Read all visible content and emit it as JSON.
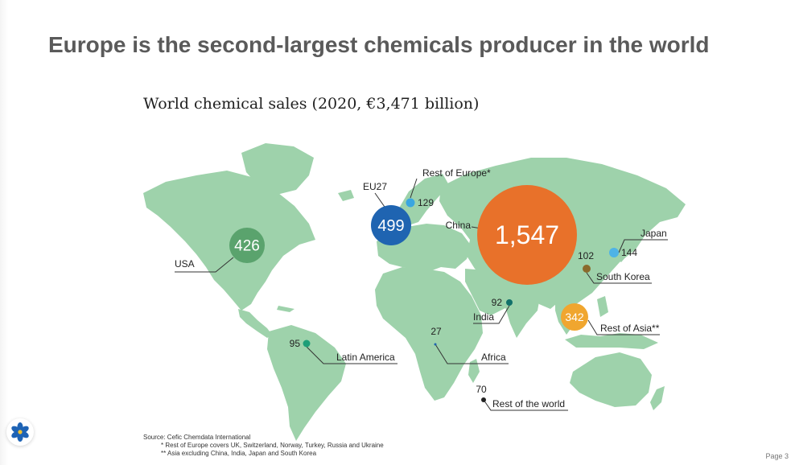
{
  "slide": {
    "title": "Europe is the second-largest chemicals producer in the world",
    "page": "Page 3"
  },
  "map": {
    "title": "World chemical sales (2020, €3,471 billion)",
    "colors": {
      "land": "#9ed2ab",
      "leader_line": "#333333"
    },
    "regions": [
      {
        "name": "China",
        "value": "1,547",
        "color": "#e8712a"
      },
      {
        "name": "EU27",
        "value": "499",
        "color": "#1f64b1"
      },
      {
        "name": "USA",
        "value": "426",
        "color": "#5aa36d"
      },
      {
        "name": "Rest of Asia**",
        "value": "342",
        "color": "#f0a62f"
      },
      {
        "name": "Japan",
        "value": "144",
        "color": "#4fb3e6"
      },
      {
        "name": "Rest of Europe*",
        "value": "129",
        "color": "#3aa6e0"
      },
      {
        "name": "South Korea",
        "value": "102",
        "color": "#8a6a2c"
      },
      {
        "name": "Latin America",
        "value": "95",
        "color": "#1e9e78"
      },
      {
        "name": "India",
        "value": "92",
        "color": "#10706a"
      },
      {
        "name": "Rest of the world",
        "value": "70",
        "color": "#222222"
      },
      {
        "name": "Africa",
        "value": "27",
        "color": "#1f64b1"
      }
    ]
  },
  "source": {
    "line": "Source: Cefic Chemdata International",
    "note1": "* Rest of Europe covers UK, Switzerland, Norway, Turkey, Russia and Ukraine",
    "note2": "** Asia excluding China, India, Japan and South Korea"
  },
  "logo": {
    "icon": "cefic-flower-logo",
    "color": "#1e63b5"
  }
}
